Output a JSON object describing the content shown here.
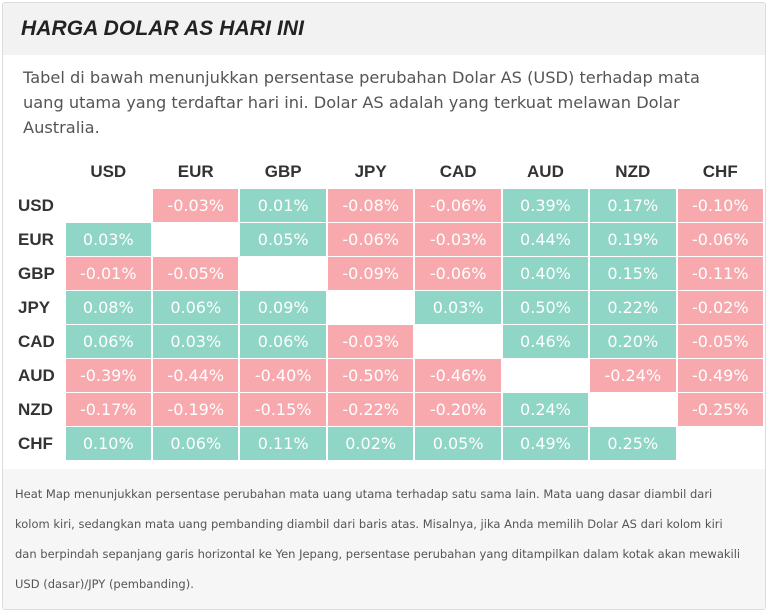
{
  "header": {
    "title": "HARGA DOLAR AS HARI INI"
  },
  "intro": {
    "text": "Tabel di bawah menunjukkan persentase perubahan Dolar AS (USD) terhadap mata uang utama yang terdaftar hari ini. Dolar AS adalah yang terkuat melawan Dolar Australia."
  },
  "heatmap": {
    "columns": [
      "USD",
      "EUR",
      "GBP",
      "JPY",
      "CAD",
      "AUD",
      "NZD",
      "CHF"
    ],
    "rows": [
      {
        "label": "USD",
        "cells": [
          {
            "v": "",
            "s": "zero"
          },
          {
            "v": "-0.03%",
            "s": "neg"
          },
          {
            "v": "0.01%",
            "s": "pos"
          },
          {
            "v": "-0.08%",
            "s": "neg"
          },
          {
            "v": "-0.06%",
            "s": "neg"
          },
          {
            "v": "0.39%",
            "s": "pos"
          },
          {
            "v": "0.17%",
            "s": "pos"
          },
          {
            "v": "-0.10%",
            "s": "neg"
          }
        ]
      },
      {
        "label": "EUR",
        "cells": [
          {
            "v": "0.03%",
            "s": "pos"
          },
          {
            "v": "",
            "s": "zero"
          },
          {
            "v": "0.05%",
            "s": "pos"
          },
          {
            "v": "-0.06%",
            "s": "neg"
          },
          {
            "v": "-0.03%",
            "s": "neg"
          },
          {
            "v": "0.44%",
            "s": "pos"
          },
          {
            "v": "0.19%",
            "s": "pos"
          },
          {
            "v": "-0.06%",
            "s": "neg"
          }
        ]
      },
      {
        "label": "GBP",
        "cells": [
          {
            "v": "-0.01%",
            "s": "neg"
          },
          {
            "v": "-0.05%",
            "s": "neg"
          },
          {
            "v": "",
            "s": "zero"
          },
          {
            "v": "-0.09%",
            "s": "neg"
          },
          {
            "v": "-0.06%",
            "s": "neg"
          },
          {
            "v": "0.40%",
            "s": "pos"
          },
          {
            "v": "0.15%",
            "s": "pos"
          },
          {
            "v": "-0.11%",
            "s": "neg"
          }
        ]
      },
      {
        "label": "JPY",
        "cells": [
          {
            "v": "0.08%",
            "s": "pos"
          },
          {
            "v": "0.06%",
            "s": "pos"
          },
          {
            "v": "0.09%",
            "s": "pos"
          },
          {
            "v": "",
            "s": "zero"
          },
          {
            "v": "0.03%",
            "s": "pos"
          },
          {
            "v": "0.50%",
            "s": "pos"
          },
          {
            "v": "0.22%",
            "s": "pos"
          },
          {
            "v": "-0.02%",
            "s": "neg"
          }
        ]
      },
      {
        "label": "CAD",
        "cells": [
          {
            "v": "0.06%",
            "s": "pos"
          },
          {
            "v": "0.03%",
            "s": "pos"
          },
          {
            "v": "0.06%",
            "s": "pos"
          },
          {
            "v": "-0.03%",
            "s": "neg"
          },
          {
            "v": "",
            "s": "zero"
          },
          {
            "v": "0.46%",
            "s": "pos"
          },
          {
            "v": "0.20%",
            "s": "pos"
          },
          {
            "v": "-0.05%",
            "s": "neg"
          }
        ]
      },
      {
        "label": "AUD",
        "cells": [
          {
            "v": "-0.39%",
            "s": "neg"
          },
          {
            "v": "-0.44%",
            "s": "neg"
          },
          {
            "v": "-0.40%",
            "s": "neg"
          },
          {
            "v": "-0.50%",
            "s": "neg"
          },
          {
            "v": "-0.46%",
            "s": "neg"
          },
          {
            "v": "",
            "s": "zero"
          },
          {
            "v": "-0.24%",
            "s": "neg"
          },
          {
            "v": "-0.49%",
            "s": "neg"
          }
        ]
      },
      {
        "label": "NZD",
        "cells": [
          {
            "v": "-0.17%",
            "s": "neg"
          },
          {
            "v": "-0.19%",
            "s": "neg"
          },
          {
            "v": "-0.15%",
            "s": "neg"
          },
          {
            "v": "-0.22%",
            "s": "neg"
          },
          {
            "v": "-0.20%",
            "s": "neg"
          },
          {
            "v": "0.24%",
            "s": "pos"
          },
          {
            "v": "",
            "s": "zero"
          },
          {
            "v": "-0.25%",
            "s": "neg"
          }
        ]
      },
      {
        "label": "CHF",
        "cells": [
          {
            "v": "0.10%",
            "s": "pos"
          },
          {
            "v": "0.06%",
            "s": "pos"
          },
          {
            "v": "0.11%",
            "s": "pos"
          },
          {
            "v": "0.02%",
            "s": "pos"
          },
          {
            "v": "0.05%",
            "s": "pos"
          },
          {
            "v": "0.49%",
            "s": "pos"
          },
          {
            "v": "0.25%",
            "s": "pos"
          },
          {
            "v": "",
            "s": "zero"
          }
        ]
      }
    ],
    "colors": {
      "positive": "#8fd6c6",
      "negative": "#f8a9ae",
      "neutral": "#ffffff"
    }
  },
  "footer": {
    "text": "Heat Map menunjukkan persentase perubahan mata uang utama terhadap satu sama lain. Mata uang dasar diambil dari kolom kiri, sedangkan mata uang pembanding diambil dari baris atas. Misalnya, jika Anda memilih Dolar AS dari kolom kiri dan berpindah sepanjang garis horizontal ke Yen Jepang, persentase perubahan yang ditampilkan dalam kotak akan mewakili USD (dasar)/JPY (pembanding)."
  }
}
